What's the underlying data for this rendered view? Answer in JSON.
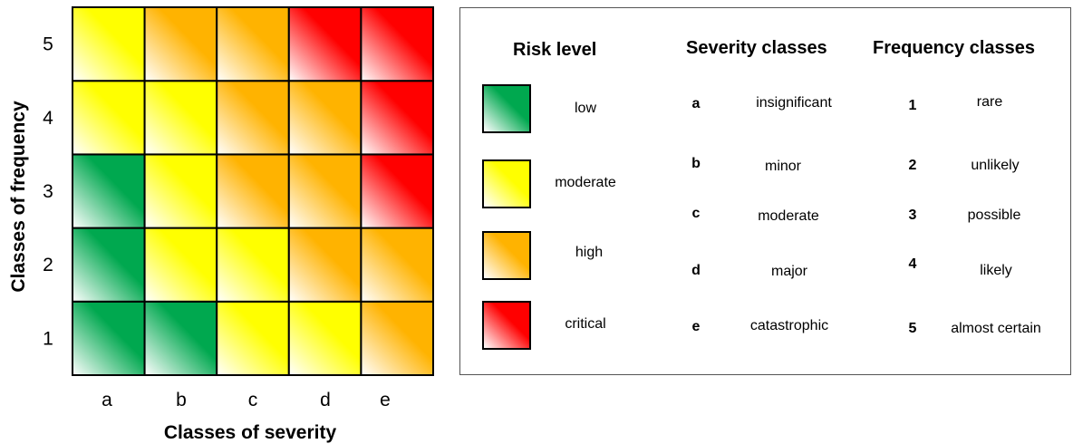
{
  "colors": {
    "low": "#00a84f",
    "moderate": "#ffff00",
    "high": "#ffb300",
    "critical": "#ff0000"
  },
  "chart_data": {
    "type": "heatmap",
    "xlabel": "Classes of severity",
    "ylabel": "Classes of frequency",
    "x_categories": [
      "a",
      "b",
      "c",
      "d",
      "e"
    ],
    "y_categories": [
      "1",
      "2",
      "3",
      "4",
      "5"
    ],
    "cells": [
      [
        "low",
        "low",
        "moderate",
        "moderate",
        "high"
      ],
      [
        "low",
        "moderate",
        "moderate",
        "high",
        "high"
      ],
      [
        "low",
        "moderate",
        "high",
        "high",
        "critical"
      ],
      [
        "moderate",
        "moderate",
        "high",
        "high",
        "critical"
      ],
      [
        "moderate",
        "high",
        "high",
        "critical",
        "critical"
      ]
    ],
    "grid": true
  },
  "legend": {
    "risk_title": "Risk level",
    "risk_levels": [
      {
        "key": "low",
        "label": "low"
      },
      {
        "key": "moderate",
        "label": "moderate"
      },
      {
        "key": "high",
        "label": "high"
      },
      {
        "key": "critical",
        "label": "critical"
      }
    ],
    "severity_title": "Severity classes",
    "severity_classes": [
      {
        "key": "a",
        "label": "insignificant"
      },
      {
        "key": "b",
        "label": "minor"
      },
      {
        "key": "c",
        "label": "moderate"
      },
      {
        "key": "d",
        "label": "major"
      },
      {
        "key": "e",
        "label": "catastrophic"
      }
    ],
    "frequency_title": "Frequency classes",
    "frequency_classes": [
      {
        "key": "1",
        "label": "rare"
      },
      {
        "key": "2",
        "label": "unlikely"
      },
      {
        "key": "3",
        "label": "possible"
      },
      {
        "key": "4",
        "label": "likely"
      },
      {
        "key": "5",
        "label": "almost certain"
      }
    ]
  }
}
